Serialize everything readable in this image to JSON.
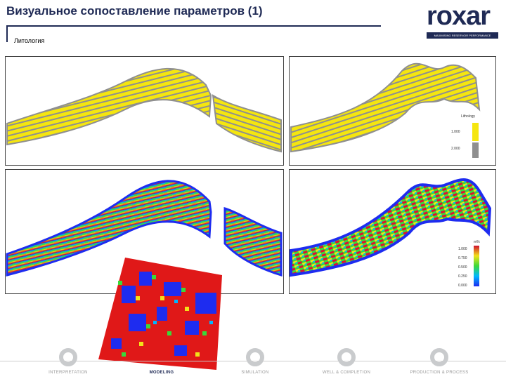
{
  "header": {
    "title": "Визуальное сопоставление параметров (1)",
    "subtitle": "Литология"
  },
  "logo": {
    "word": "roxar",
    "tagline": "MAXIMISING RESERVOIR PERFORMANCE"
  },
  "legend_lithology": {
    "title": "Lithology",
    "items": [
      {
        "label": "1.000",
        "color": "#f5e60f"
      },
      {
        "label": "2.000",
        "color": "#8f8f8f"
      }
    ]
  },
  "legend_property": {
    "title": "m%",
    "ticks": [
      "1.000",
      "0.750",
      "0.500",
      "0.250",
      "0.000"
    ]
  },
  "footer": {
    "stages": [
      {
        "label": "INTERPRETATION",
        "active": false
      },
      {
        "label": "MODELING",
        "active": true
      },
      {
        "label": "SIMULATION",
        "active": false
      },
      {
        "label": "WELL & COMPLETION",
        "active": false
      },
      {
        "label": "PRODUCTION & PROCESS",
        "active": false
      }
    ]
  },
  "colors": {
    "brand": "#1f2a55",
    "lith_sand": "#f5e60f",
    "lith_shale": "#8f8f8f"
  }
}
